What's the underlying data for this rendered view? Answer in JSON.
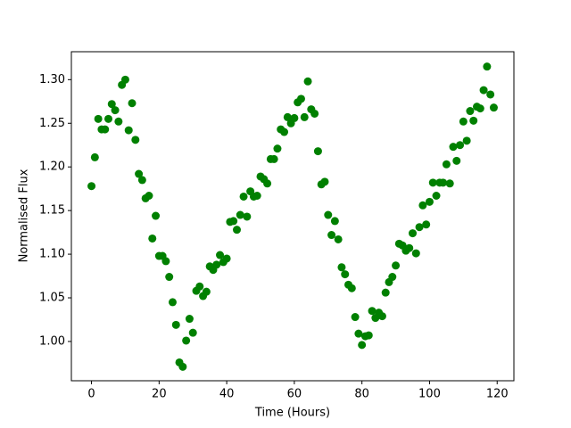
{
  "chart_data": {
    "type": "scatter",
    "xlabel": "Time (Hours)",
    "ylabel": "Normalised Flux",
    "color": "#008000",
    "x": [
      0,
      1,
      2,
      3,
      4,
      5,
      6,
      7,
      8,
      9,
      10,
      11,
      12,
      13,
      14,
      15,
      16,
      17,
      18,
      19,
      20,
      21,
      22,
      23,
      24,
      25,
      26,
      27,
      28,
      29,
      30,
      31,
      32,
      33,
      34,
      35,
      36,
      37,
      38,
      39,
      40,
      41,
      42,
      43,
      44,
      45,
      46,
      47,
      48,
      49,
      50,
      51,
      52,
      53,
      54,
      55,
      56,
      57,
      58,
      59,
      60,
      61,
      62,
      63,
      64,
      65,
      66,
      67,
      68,
      69,
      70,
      71,
      72,
      73,
      74,
      75,
      76,
      77,
      78,
      79,
      80,
      81,
      82,
      83,
      84,
      85,
      86,
      87,
      88,
      89,
      90,
      91,
      92,
      93,
      94,
      95,
      96,
      97,
      98,
      99,
      100,
      101,
      102,
      103,
      104,
      105,
      106,
      107,
      108,
      109,
      110,
      111,
      112,
      113,
      114,
      115,
      116,
      117,
      118,
      119
    ],
    "values": [
      1.178,
      1.211,
      1.255,
      1.243,
      1.243,
      1.255,
      1.272,
      1.265,
      1.252,
      1.294,
      1.3,
      1.242,
      1.273,
      1.231,
      1.192,
      1.185,
      1.164,
      1.167,
      1.118,
      1.144,
      1.098,
      1.098,
      1.092,
      1.074,
      1.045,
      1.019,
      0.976,
      0.971,
      1.001,
      1.026,
      1.01,
      1.058,
      1.063,
      1.052,
      1.057,
      1.086,
      1.082,
      1.088,
      1.099,
      1.091,
      1.095,
      1.137,
      1.138,
      1.128,
      1.145,
      1.166,
      1.143,
      1.172,
      1.166,
      1.167,
      1.189,
      1.186,
      1.181,
      1.209,
      1.209,
      1.221,
      1.243,
      1.24,
      1.257,
      1.25,
      1.256,
      1.274,
      1.278,
      1.257,
      1.298,
      1.266,
      1.261,
      1.218,
      1.18,
      1.183,
      1.145,
      1.122,
      1.138,
      1.117,
      1.085,
      1.077,
      1.065,
      1.061,
      1.028,
      1.009,
      0.996,
      1.006,
      1.007,
      1.035,
      1.027,
      1.033,
      1.029,
      1.056,
      1.068,
      1.074,
      1.087,
      1.112,
      1.11,
      1.104,
      1.107,
      1.124,
      1.101,
      1.131,
      1.156,
      1.134,
      1.16,
      1.182,
      1.167,
      1.182,
      1.182,
      1.203,
      1.181,
      1.223,
      1.207,
      1.225,
      1.252,
      1.23,
      1.264,
      1.253,
      1.269,
      1.267,
      1.288,
      1.315,
      1.283,
      1.268
    ],
    "xlim": [
      -5.95,
      124.95
    ],
    "ylim": [
      0.955,
      1.332
    ],
    "xticks": [
      0,
      20,
      40,
      60,
      80,
      100,
      120
    ],
    "yticks": [
      {
        "value": 1.0,
        "label": "1.00"
      },
      1.05,
      {
        "value": 1.1,
        "label": "1.10"
      },
      1.15,
      {
        "value": 1.2,
        "label": "1.20"
      },
      1.25,
      {
        "value": 1.3,
        "label": "1.30"
      }
    ],
    "grid": false
  }
}
